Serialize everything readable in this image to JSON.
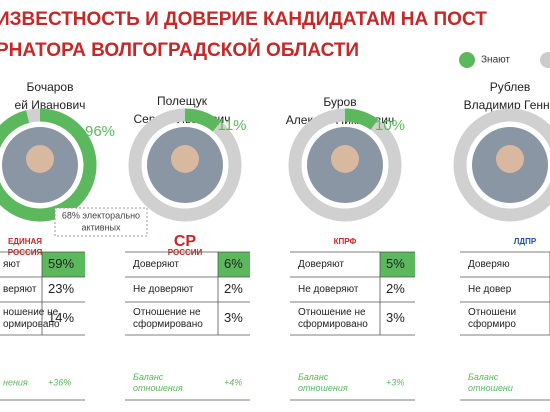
{
  "title": [
    "ИЗВЕСТНОСТЬ И ДОВЕРИЕ КАНДИДАТАМ НА ПОСТ",
    "РНАТОРА ВОЛГОГРАДСКОЙ ОБЛАСТИ"
  ],
  "legend": [
    "Знают"
  ],
  "candidates": [
    {
      "name": [
        "Бочаров",
        "ей Иванович"
      ],
      "known": 96,
      "known_label": "96%",
      "party": [
        "ЕДИНАЯ",
        "РОССИЯ"
      ],
      "note": [
        "68% электорально",
        "активных"
      ],
      "rows": [
        {
          "label": [
            "яют"
          ],
          "value": "59%"
        },
        {
          "label": [
            "веряют"
          ],
          "value": "23%"
        },
        {
          "label": [
            "ношение не",
            "ормировано"
          ],
          "value": "14%"
        }
      ],
      "balance": {
        "label": [
          "нения"
        ],
        "value": "+36%"
      }
    },
    {
      "name": [
        "Полещук",
        "Сергей Иванович"
      ],
      "known": 11,
      "known_label": "11%",
      "party": [
        "СР",
        "РОССИИ"
      ],
      "rows": [
        {
          "label": [
            "Доверяют"
          ],
          "value": "6%"
        },
        {
          "label": [
            "Не доверяют"
          ],
          "value": "2%"
        },
        {
          "label": [
            "Отношение не",
            "сформировано"
          ],
          "value": "3%"
        }
      ],
      "balance": {
        "label": [
          "Баланс",
          "отношения"
        ],
        "value": "+4%"
      }
    },
    {
      "name": [
        "Буров",
        "Алексей Никитович"
      ],
      "known": 10,
      "known_label": "10%",
      "party": [
        "КПРФ"
      ],
      "rows": [
        {
          "label": [
            "Доверяют"
          ],
          "value": "5%"
        },
        {
          "label": [
            "Не доверяют"
          ],
          "value": "2%"
        },
        {
          "label": [
            "Отношение не",
            "сформировано"
          ],
          "value": "3%"
        }
      ],
      "balance": {
        "label": [
          "Баланс",
          "отношения"
        ],
        "value": "+3%"
      }
    },
    {
      "name": [
        "Рублев",
        "Владимир Генна"
      ],
      "party": [
        "ЛДПР"
      ],
      "rows": [
        {
          "label": [
            "Доверяю"
          ]
        },
        {
          "label": [
            "Не довер"
          ]
        },
        {
          "label": [
            "Отношени",
            "сформиро"
          ]
        }
      ],
      "balance": {
        "label": [
          "Баланс",
          "отношени"
        ]
      }
    }
  ]
}
